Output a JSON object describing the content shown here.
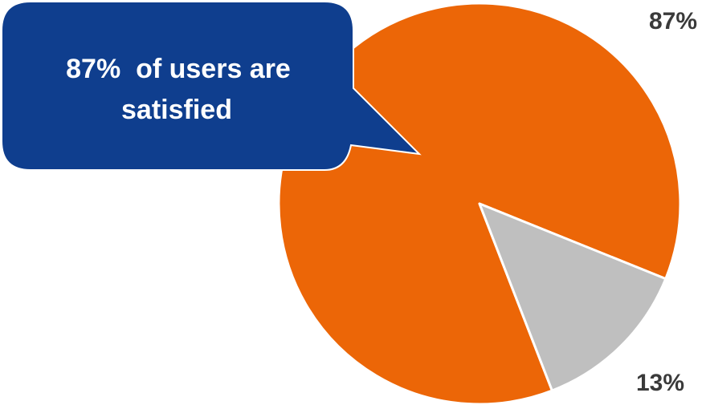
{
  "callout": {
    "line1": "87%  of users are",
    "line2": "satisfied",
    "color": "#0F3E8E",
    "text_color": "#FFFFFF"
  },
  "chart_data": {
    "type": "pie",
    "title": "",
    "slices": [
      {
        "name": "",
        "value": 87,
        "label": "87%",
        "color": "#EC6607"
      },
      {
        "name": "",
        "value": 13,
        "label": "13%",
        "color": "#BFBFBF"
      }
    ],
    "slice_border_color": "#FFFFFF",
    "label_color": "#3A3A3A",
    "legend": "none"
  }
}
